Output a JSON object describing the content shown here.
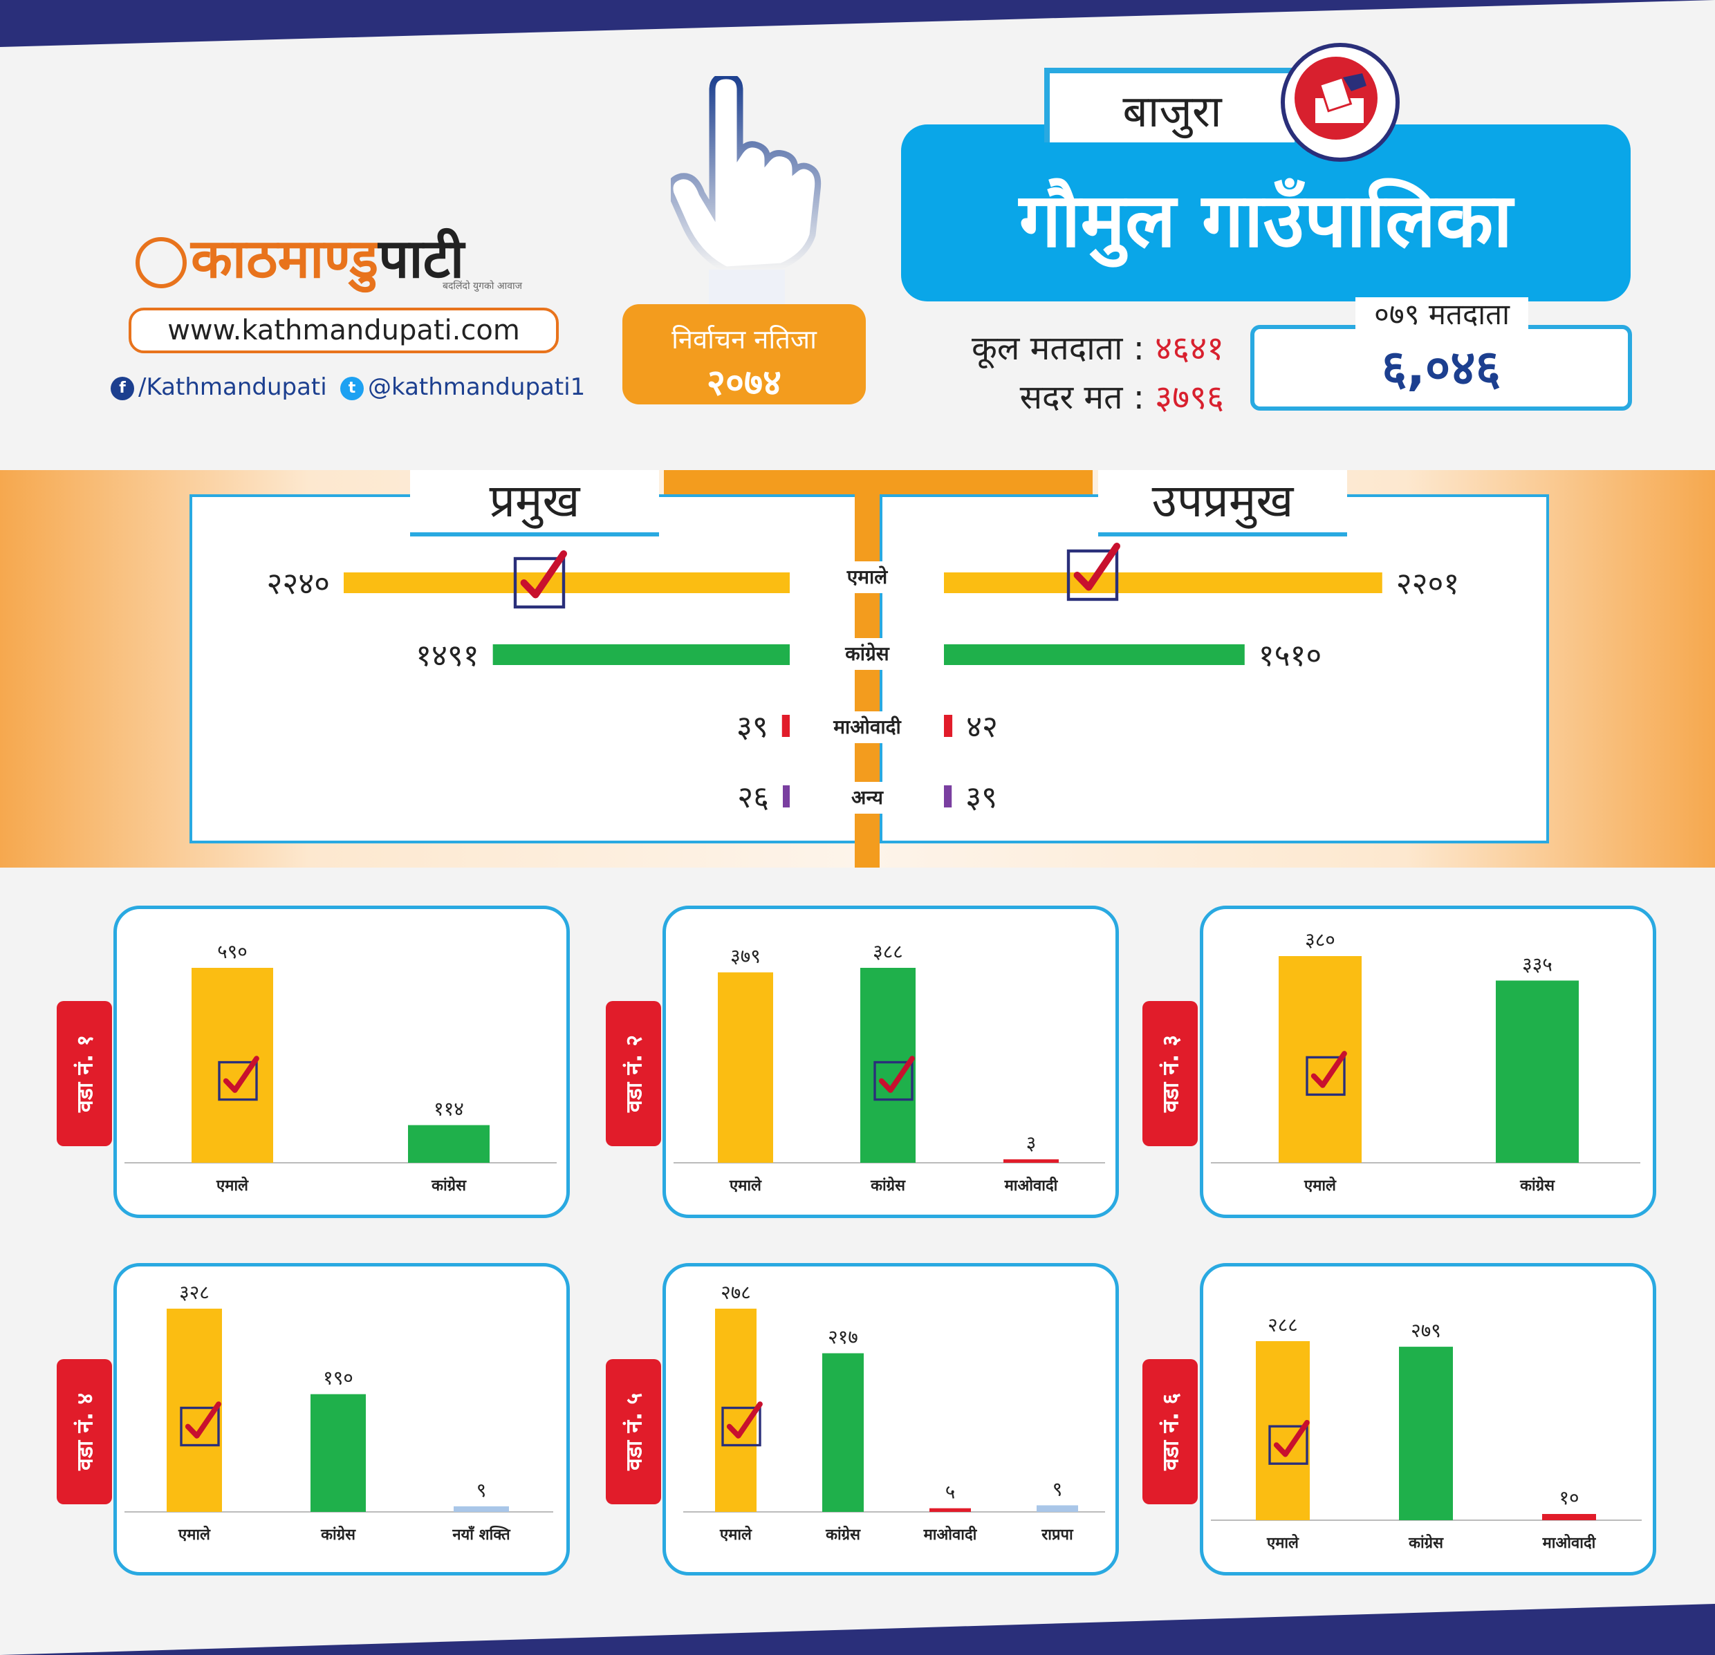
{
  "brand": {
    "logo_a": "काठमाण्डु",
    "logo_b": "पाटी",
    "tagline": "बदलिंदो युगको आवाज",
    "url": "www.kathmandupati.com",
    "facebook": "/Kathmandupati",
    "twitter": "@kathmandupati1"
  },
  "header": {
    "result_title": "निर्वाचन नतिजा",
    "result_year": "२०७४",
    "district": "बाजुरा",
    "municipality": "गौमुल गाउँपालिका",
    "total_voters_label": "कूल मतदाता :",
    "total_voters": "४६४१",
    "valid_votes_label": "सदर मत :",
    "valid_votes": "३७९६",
    "voters_079_label": "०७९ मतदाता",
    "voters_079": "६,०४६"
  },
  "colors": {
    "uml": "#fbbd12",
    "congress": "#1fb04b",
    "maoist": "#e11c2a",
    "other": "#7a3fa0",
    "rpp": "#a9c6e8",
    "naya": "#a9c6e8"
  },
  "chart_data": [
    {
      "type": "bar",
      "title": "प्रमुख",
      "categories": [
        "एमाले",
        "कांग्रेस",
        "माओवादी",
        "अन्य"
      ],
      "values": [
        2240,
        1491,
        39,
        26
      ],
      "labels": [
        "२२४०",
        "१४९१",
        "३९",
        "२६"
      ],
      "winner": "एमाले"
    },
    {
      "type": "bar",
      "title": "उपप्रमुख",
      "categories": [
        "एमाले",
        "कांग्रेस",
        "माओवादी",
        "अन्य"
      ],
      "values": [
        2201,
        1510,
        42,
        39
      ],
      "labels": [
        "२२०१",
        "१५१०",
        "४२",
        "३९"
      ],
      "winner": "एमाले"
    },
    {
      "type": "bar",
      "title": "वडा नं. १",
      "categories": [
        "एमाले",
        "कांग्रेस"
      ],
      "values": [
        590,
        114
      ],
      "labels": [
        "५९०",
        "११४"
      ],
      "winner": "एमाले"
    },
    {
      "type": "bar",
      "title": "वडा नं. २",
      "categories": [
        "एमाले",
        "कांग्रेस",
        "माओवादी"
      ],
      "values": [
        379,
        388,
        3
      ],
      "labels": [
        "३७९",
        "३८८",
        "३"
      ],
      "winner": "कांग्रेस"
    },
    {
      "type": "bar",
      "title": "वडा नं. ३",
      "categories": [
        "एमाले",
        "कांग्रेस"
      ],
      "values": [
        380,
        335
      ],
      "labels": [
        "३८०",
        "३३५"
      ],
      "winner": "एमाले"
    },
    {
      "type": "bar",
      "title": "वडा नं. ४",
      "categories": [
        "एमाले",
        "कांग्रेस",
        "नयाँ शक्ति"
      ],
      "values": [
        328,
        190,
        9
      ],
      "labels": [
        "३२८",
        "१९०",
        "९"
      ],
      "winner": "एमाले"
    },
    {
      "type": "bar",
      "title": "वडा नं. ५",
      "categories": [
        "एमाले",
        "कांग्रेस",
        "माओवादी",
        "राप्रपा"
      ],
      "values": [
        278,
        217,
        5,
        9
      ],
      "labels": [
        "२७८",
        "२१७",
        "५",
        "९"
      ],
      "winner": "एमाले"
    },
    {
      "type": "bar",
      "title": "वडा नं. ६",
      "categories": [
        "एमाले",
        "कांग्रेस",
        "माओवादी"
      ],
      "values": [
        288,
        279,
        10
      ],
      "labels": [
        "२८८",
        "२७९",
        "१०"
      ],
      "winner": "एमाले"
    }
  ]
}
